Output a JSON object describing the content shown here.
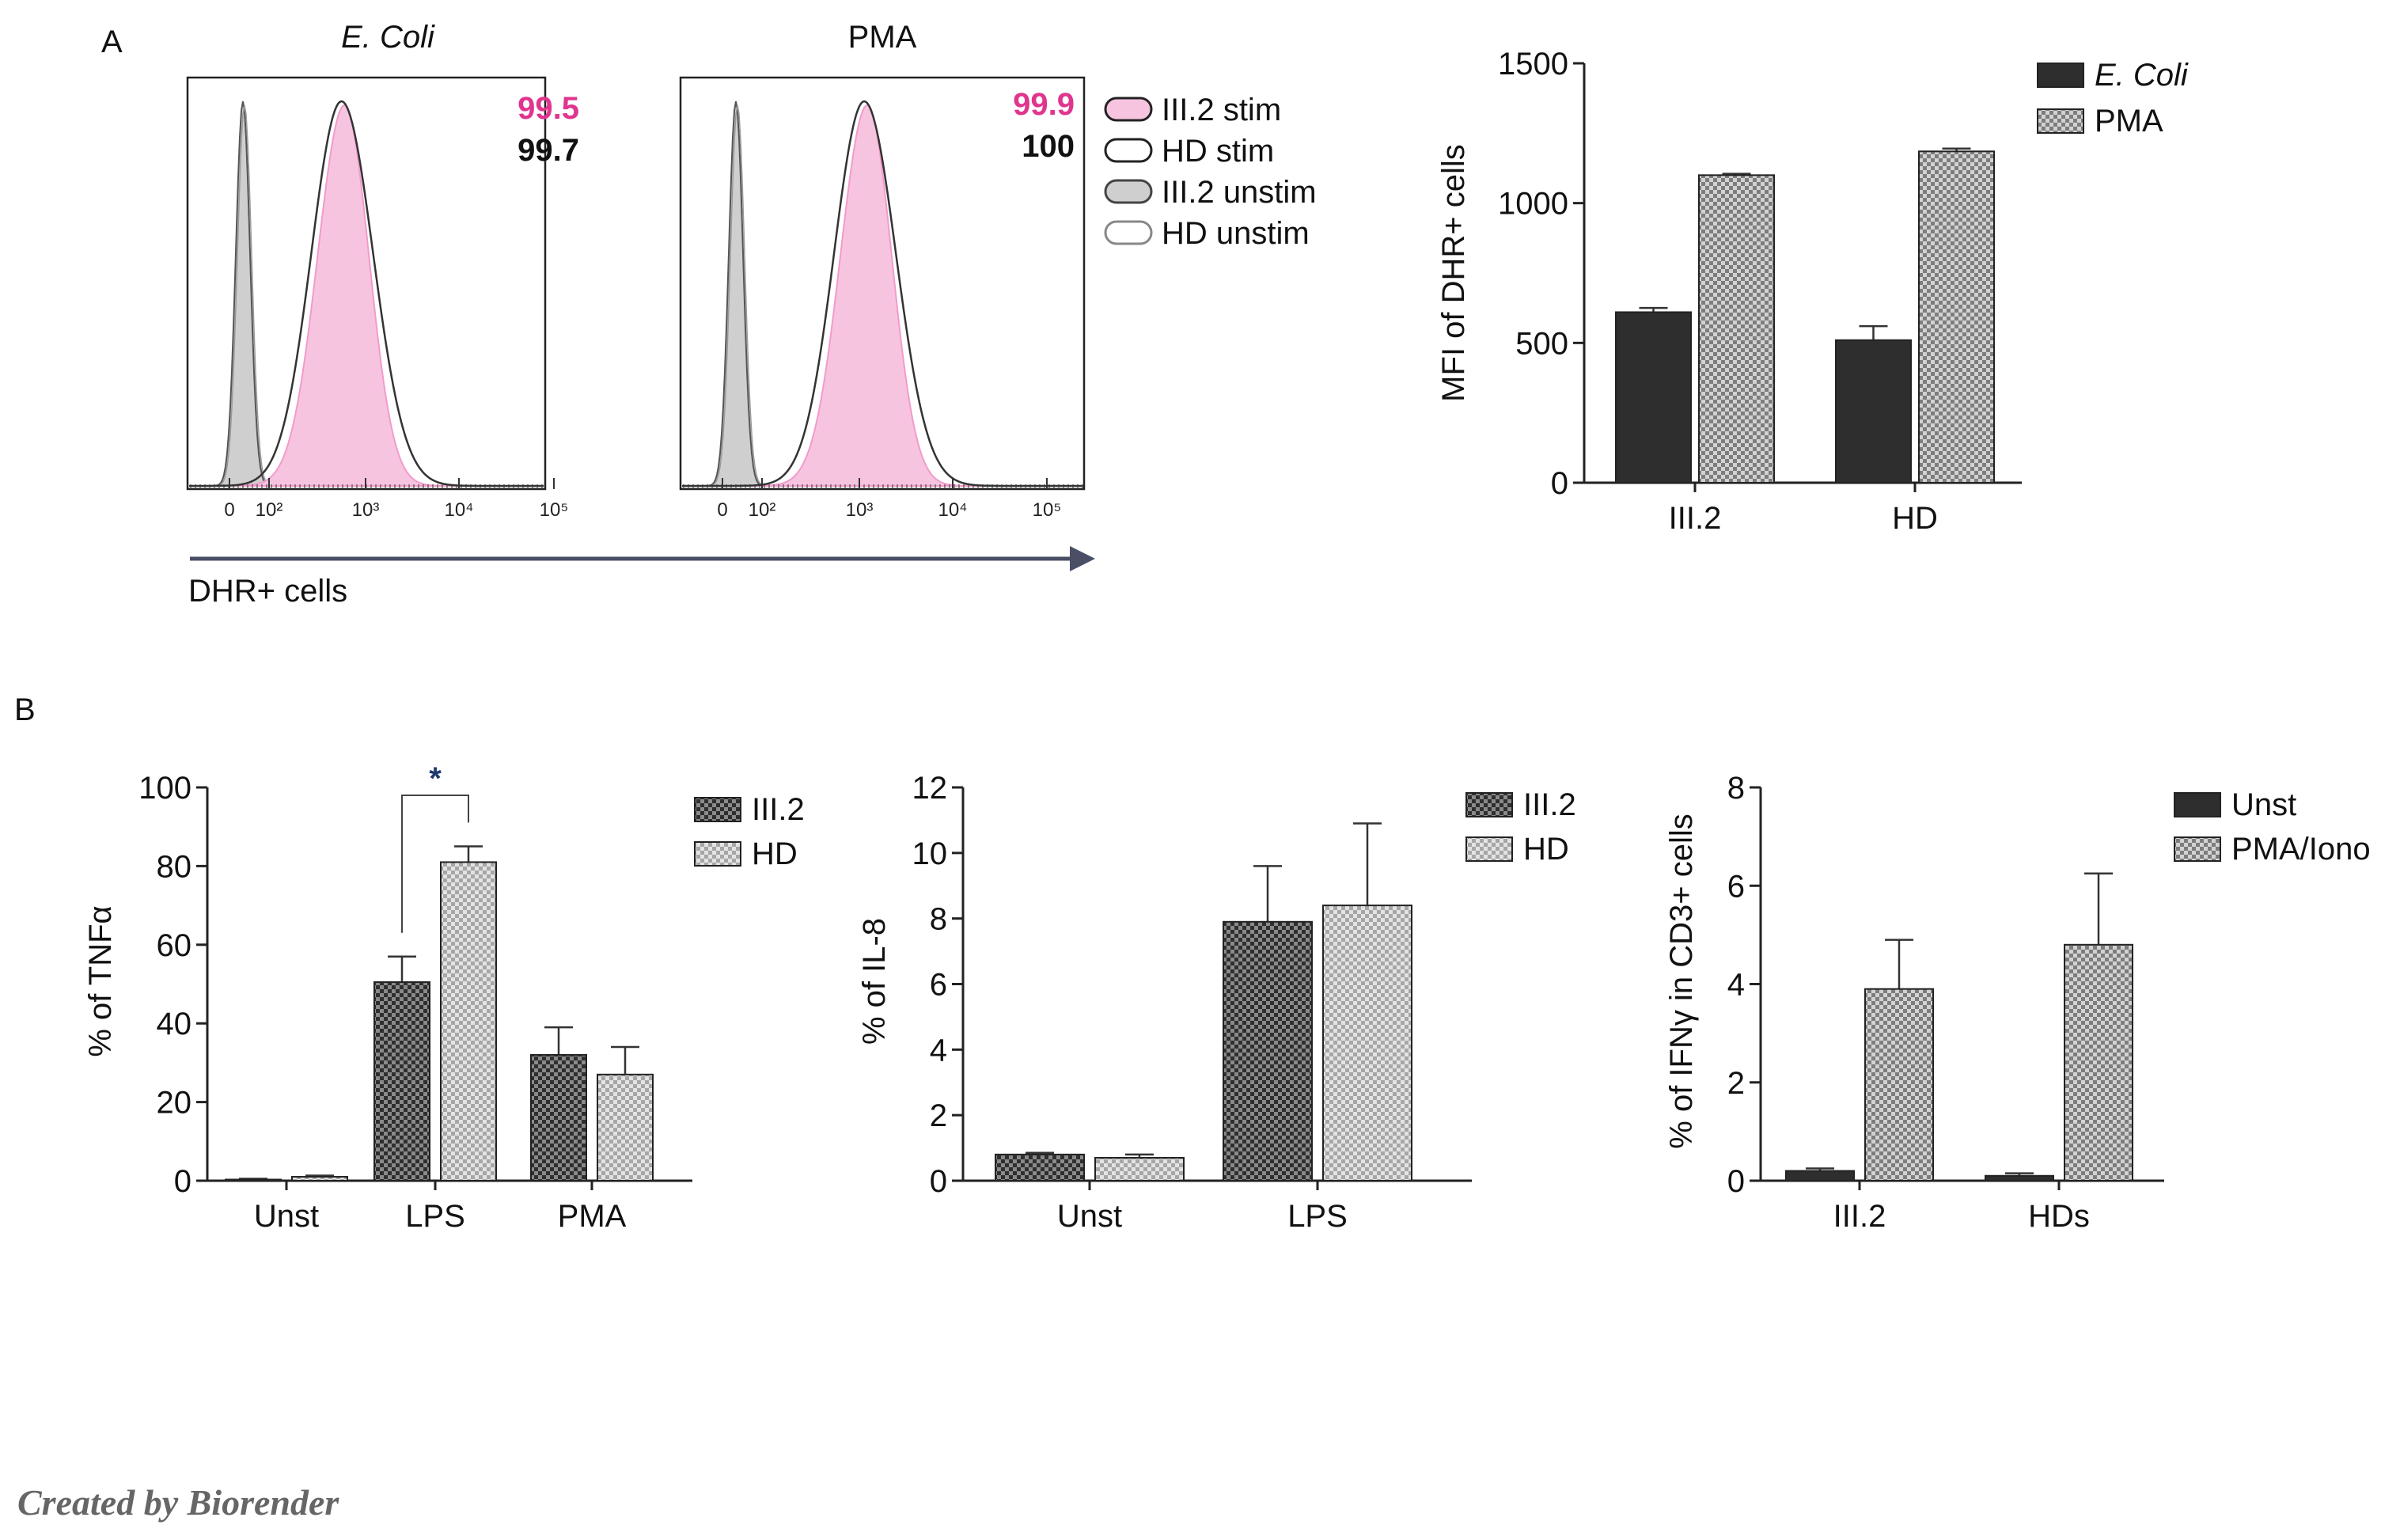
{
  "panel_labels": {
    "a": "A",
    "b": "B"
  },
  "footer": {
    "credit": "Created by Biorender"
  },
  "colors": {
    "magenta": "#e0358e",
    "pink_fill": "#f7c4e0",
    "dark": "#2e2e2e",
    "gray_fill": "#c8c8c8",
    "axis_arrow": "#4a4f66"
  },
  "histograms": {
    "axis_label": "DHR+ cells",
    "tick_labels": [
      "0",
      "10²",
      "10³",
      "10⁴",
      "10⁵"
    ],
    "legend": [
      "III.2 stim",
      "HD stim",
      "III.2 unstim",
      "HD unstim"
    ],
    "panels": [
      {
        "title": "E. Coli",
        "value_pink": "99.5",
        "value_black": "99.7",
        "peak_decade": 2.75
      },
      {
        "title": "PMA",
        "value_pink": "99.9",
        "value_black": "100",
        "peak_decade": 3.05
      }
    ]
  },
  "chart_data": [
    {
      "type": "bar",
      "id": "mfi",
      "title": "",
      "xlabel": "",
      "ylabel": "MFI of DHR+ cells",
      "ylim": [
        0,
        1500
      ],
      "yticks": [
        0,
        500,
        1000,
        1500
      ],
      "categories": [
        "III.2",
        "HD"
      ],
      "series": [
        {
          "name": "E. Coli",
          "values": [
            610,
            510
          ],
          "errors": [
            15,
            50
          ],
          "fill": "dark"
        },
        {
          "name": "PMA",
          "values": [
            1100,
            1185
          ],
          "errors": [
            5,
            10
          ],
          "fill": "check"
        }
      ]
    },
    {
      "type": "bar",
      "id": "tnf",
      "title": "",
      "xlabel": "",
      "ylabel": "% of TNFα",
      "ylim": [
        0,
        100
      ],
      "yticks": [
        0,
        20,
        40,
        60,
        80,
        100
      ],
      "categories": [
        "Unst",
        "LPS",
        "PMA"
      ],
      "series": [
        {
          "name": "III.2",
          "values": [
            0.3,
            50.5,
            32
          ],
          "errors": [
            0.2,
            6.5,
            7
          ],
          "fill": "darkcheck"
        },
        {
          "name": "HD",
          "values": [
            1,
            81,
            27
          ],
          "errors": [
            0.3,
            4,
            7
          ],
          "fill": "lightcheck"
        }
      ],
      "annotation": {
        "text": "*",
        "between": "LPS"
      }
    },
    {
      "type": "bar",
      "id": "il8",
      "title": "",
      "xlabel": "",
      "ylabel": "% of IL-8",
      "ylim": [
        0,
        12
      ],
      "yticks": [
        0,
        2,
        4,
        6,
        8,
        10,
        12
      ],
      "categories": [
        "Unst",
        "LPS"
      ],
      "series": [
        {
          "name": "III.2",
          "values": [
            0.8,
            7.9
          ],
          "errors": [
            0.05,
            1.7
          ],
          "fill": "darkcheck"
        },
        {
          "name": "HD",
          "values": [
            0.7,
            8.4
          ],
          "errors": [
            0.1,
            2.5
          ],
          "fill": "lightcheck"
        }
      ]
    },
    {
      "type": "bar",
      "id": "ifn",
      "title": "",
      "xlabel": "",
      "ylabel": "% of IFNγ in CD3+ cells",
      "ylim": [
        0,
        8
      ],
      "yticks": [
        0,
        2,
        4,
        6,
        8
      ],
      "categories": [
        "III.2",
        "HDs"
      ],
      "series": [
        {
          "name": "Unst",
          "values": [
            0.2,
            0.1
          ],
          "errors": [
            0.05,
            0.05
          ],
          "fill": "dark"
        },
        {
          "name": "PMA/Iono",
          "values": [
            3.9,
            4.8
          ],
          "errors": [
            1,
            1.45
          ],
          "fill": "check"
        }
      ]
    }
  ]
}
